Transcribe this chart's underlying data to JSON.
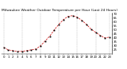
{
  "title": "Milwaukee Weather Outdoor Temperature per Hour (Last 24 Hours)",
  "hours": [
    0,
    1,
    2,
    3,
    4,
    5,
    6,
    7,
    8,
    9,
    10,
    11,
    12,
    13,
    14,
    15,
    16,
    17,
    18,
    19,
    20,
    21,
    22,
    23
  ],
  "temps": [
    28,
    25,
    24,
    23,
    23,
    24,
    25,
    26,
    30,
    36,
    42,
    50,
    57,
    63,
    67,
    68,
    66,
    62,
    57,
    51,
    47,
    43,
    40,
    41
  ],
  "line_color": "#cc0000",
  "marker_color": "#000000",
  "grid_color": "#aaaaaa",
  "bg_color": "#ffffff",
  "title_color": "#000000",
  "ylabel_color": "#000000",
  "grid_hours": [
    0,
    4,
    8,
    12,
    16,
    20,
    23
  ],
  "ylim_min": 20,
  "ylim_max": 72,
  "yticks": [
    25,
    30,
    35,
    40,
    45,
    50,
    55,
    60,
    65,
    70
  ],
  "title_fontsize": 3.2,
  "tick_fontsize": 2.8
}
